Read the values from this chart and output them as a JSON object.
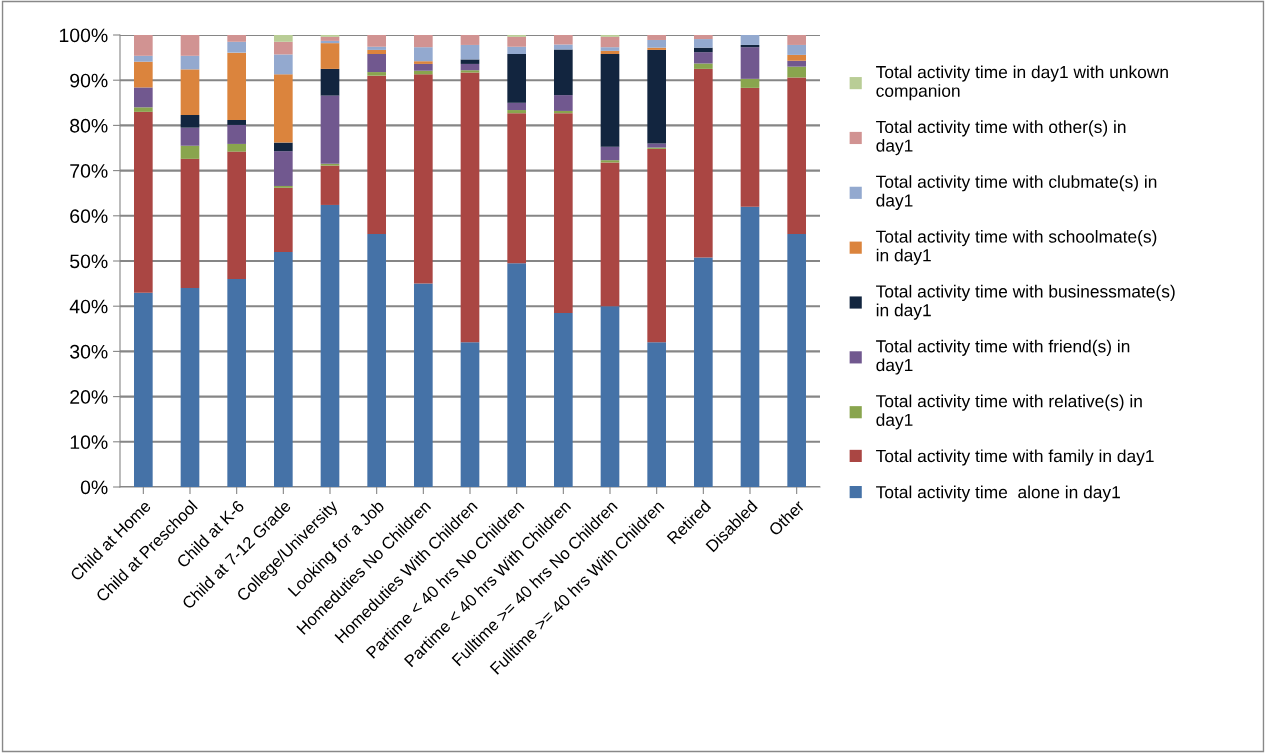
{
  "chart_data": {
    "type": "bar",
    "stacked": true,
    "categories": [
      "Child at Home",
      "Child at Preschool",
      "Child at K-6",
      "Child at 7-12 Grade",
      "College/University",
      "Looking for a Job",
      "Homeduties No Children",
      "Homeduties With Children",
      "Partime < 40 hrs No Children",
      "Partime < 40 hrs With Children",
      "Fulltime >= 40 hrs No Children",
      "Fulltime >= 40 hrs With Children",
      "Retired",
      "Disabled",
      "Other"
    ],
    "series": [
      {
        "name": "Total activity time  alone in day1",
        "color": "#4572a7",
        "values": [
          43,
          44,
          46,
          52,
          62.4,
          56,
          45,
          32,
          49.5,
          38.5,
          40,
          32,
          50.8,
          62,
          56
        ]
      },
      {
        "name": "Total activity time with family in day1",
        "color": "#aa4643",
        "values": [
          40,
          28.6,
          28.2,
          14.2,
          8.7,
          35,
          46.3,
          59.7,
          33.2,
          44.2,
          31.8,
          42.8,
          41.7,
          26.3,
          34.6
        ]
      },
      {
        "name": "Total activity time with relative(s) in day1",
        "color": "#89a54e",
        "values": [
          1,
          2.9,
          1.7,
          0.4,
          0.4,
          0.8,
          0.8,
          0.5,
          0.7,
          0.5,
          0.5,
          0.3,
          1.2,
          2,
          2.4
        ]
      },
      {
        "name": "Total activity time with friend(s) in day1",
        "color": "#71588f",
        "values": [
          4.4,
          4,
          4.2,
          7.7,
          15.1,
          4,
          1.5,
          1.4,
          1.6,
          3.5,
          3,
          0.9,
          2.5,
          7,
          1.3
        ]
      },
      {
        "name": "Total activity time with businessmate(s) in day1",
        "color": "#12253f",
        "values": [
          0,
          2.8,
          1.1,
          1.9,
          5.9,
          0,
          0,
          1,
          10.8,
          10.1,
          20.5,
          20.7,
          1,
          0.5,
          0
        ]
      },
      {
        "name": "Total activity time with schoolmate(s) in day1",
        "color": "#db843d",
        "values": [
          5.7,
          10.1,
          14.9,
          15.1,
          5.7,
          0.9,
          0.6,
          null,
          null,
          0,
          0.7,
          0.5,
          0,
          0,
          1.3
        ]
      },
      {
        "name": "Total activity time with clubmate(s) in day1",
        "color": "#93a9cf",
        "values": [
          1.3,
          3,
          2.4,
          4.4,
          0.5,
          0.7,
          3.1,
          3.2,
          1.6,
          1.1,
          0.8,
          1.7,
          1.9,
          2.2,
          2.2
        ]
      },
      {
        "name": "Total activity time with other(s) in day1",
        "color": "#d19392",
        "values": [
          4.6,
          4.6,
          1.5,
          2.8,
          0.9,
          2.6,
          2.7,
          2.2,
          2.2,
          2.1,
          2.3,
          1.1,
          0.9,
          0,
          2.2
        ]
      },
      {
        "name": "Total activity time in day1 with unkown companion",
        "color": "#b9cd96",
        "values": [
          0,
          0,
          0,
          1.5,
          0.4,
          0,
          0,
          0,
          0.4,
          0,
          0.4,
          0,
          0,
          0,
          0
        ]
      }
    ],
    "ylim": [
      0,
      100
    ],
    "yticks": [
      {
        "value": 0,
        "label": "0%"
      },
      {
        "value": 10,
        "label": "10%"
      },
      {
        "value": 20,
        "label": "20%"
      },
      {
        "value": 30,
        "label": "30%"
      },
      {
        "value": 40,
        "label": "40%"
      },
      {
        "value": 50,
        "label": "50%"
      },
      {
        "value": 60,
        "label": "60%"
      },
      {
        "value": 70,
        "label": "70%"
      },
      {
        "value": 80,
        "label": "80%"
      },
      {
        "value": 90,
        "label": "90%"
      },
      {
        "value": 100,
        "label": "100%"
      }
    ],
    "grid": "y",
    "legend": "right"
  }
}
